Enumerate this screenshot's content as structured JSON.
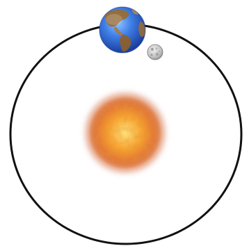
{
  "diagram": {
    "bodies": [
      {
        "name": "Sun"
      },
      {
        "name": "Earth"
      },
      {
        "name": "Moon"
      }
    ],
    "colors": {
      "orbit": "#111111",
      "sun_core": "#ffd766",
      "sun_mid": "#f59a2e",
      "sun_edge": "#c9653a",
      "earth_ocean": "#2f6fe0",
      "earth_land": "#9a6a2f",
      "moon": "#c9c9c9"
    }
  }
}
